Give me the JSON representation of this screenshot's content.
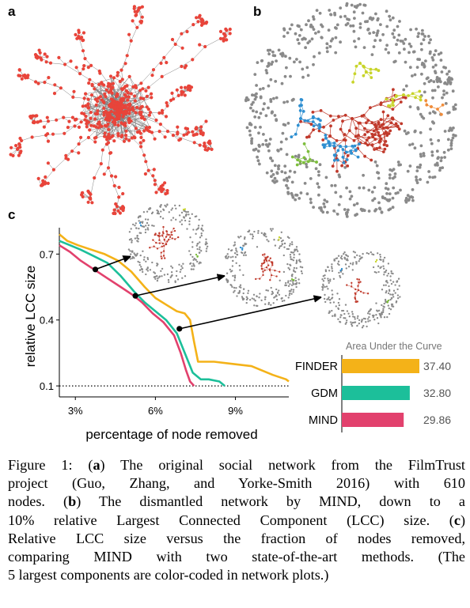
{
  "panels": {
    "a_label": "a",
    "b_label": "b",
    "c_label": "c"
  },
  "chart_data": {
    "type": "line",
    "xlabel": "percentage of node removed",
    "ylabel": "relative LCC size",
    "xticks": [
      "3%",
      "6%",
      "9%"
    ],
    "xtick_values": [
      3,
      6,
      9
    ],
    "yticks": [
      "0.1",
      "0.4",
      "0.7"
    ],
    "ytick_values": [
      0.1,
      0.4,
      0.7
    ],
    "xlim": [
      2.4,
      11.0
    ],
    "ylim": [
      0.05,
      0.82
    ],
    "reference_line": {
      "y": 0.1,
      "style": "dotted"
    },
    "series": [
      {
        "name": "FINDER",
        "color": "#F4B218",
        "x": [
          2.4,
          2.7,
          3.1,
          3.6,
          4.1,
          4.6,
          5.1,
          5.6,
          6.0,
          6.4,
          6.8,
          7.1,
          7.3,
          7.45,
          7.6,
          8.2,
          8.9,
          9.6,
          10.4,
          10.9,
          11.0
        ],
        "y": [
          0.79,
          0.76,
          0.74,
          0.72,
          0.7,
          0.67,
          0.62,
          0.55,
          0.5,
          0.47,
          0.44,
          0.43,
          0.4,
          0.3,
          0.21,
          0.21,
          0.2,
          0.19,
          0.15,
          0.13,
          0.12
        ]
      },
      {
        "name": "GDM",
        "color": "#1CBF9A",
        "x": [
          2.4,
          2.8,
          3.2,
          3.7,
          4.2,
          4.7,
          5.2,
          5.6,
          6.0,
          6.4,
          6.8,
          7.1,
          7.4,
          7.7,
          8.0,
          8.4,
          8.6
        ],
        "y": [
          0.76,
          0.74,
          0.72,
          0.69,
          0.66,
          0.6,
          0.53,
          0.48,
          0.44,
          0.4,
          0.34,
          0.25,
          0.16,
          0.13,
          0.13,
          0.12,
          0.1
        ]
      },
      {
        "name": "MIND",
        "color": "#E2416D",
        "x": [
          2.4,
          2.8,
          3.2,
          3.7,
          4.2,
          4.7,
          5.2,
          5.5,
          5.9,
          6.3,
          6.7,
          6.95,
          7.15,
          7.3,
          7.45
        ],
        "y": [
          0.74,
          0.71,
          0.67,
          0.63,
          0.59,
          0.55,
          0.51,
          0.48,
          0.43,
          0.39,
          0.33,
          0.25,
          0.17,
          0.12,
          0.1
        ]
      }
    ],
    "annotations": [
      {
        "series": "MIND",
        "x": 3.75,
        "y": 0.63
      },
      {
        "series": "MIND",
        "x": 5.25,
        "y": 0.51
      },
      {
        "series": "MIND",
        "x": 6.9,
        "y": 0.36
      }
    ],
    "auc": {
      "title": "Area Under the Curve",
      "bars": [
        {
          "name": "FINDER",
          "value": "37.40",
          "num": 37.4,
          "color": "#F4B218"
        },
        {
          "name": "GDM",
          "value": "32.80",
          "num": 32.8,
          "color": "#1CBF9A"
        },
        {
          "name": "MIND",
          "value": "29.86",
          "num": 29.86,
          "color": "#E2416D"
        }
      ]
    }
  },
  "caption": {
    "lines": [
      "Figure 1: (a) The original social network from the FilmTrust",
      "project (Guo, Zhang, and Yorke-Smith 2016) with 610",
      "nodes. (b) The dismantled network by MIND, down to a",
      "10% relative Largest Connected Component (LCC) size. (c)",
      "Relative LCC size versus the fraction of nodes removed,",
      "comparing MIND with two state-of-the-art methods. (The",
      "5 largest components are color-coded in network plots.)"
    ]
  },
  "colors": {
    "node_red": "#E8443A",
    "edge_gray": "#555555",
    "isolated_gray": "#8a8a8a",
    "component_yellow": "#C8D42A",
    "component_blue": "#2E8FD1",
    "component_green": "#7DBE3C",
    "component_orange": "#F08C3A",
    "component_red": "#C0392B"
  }
}
